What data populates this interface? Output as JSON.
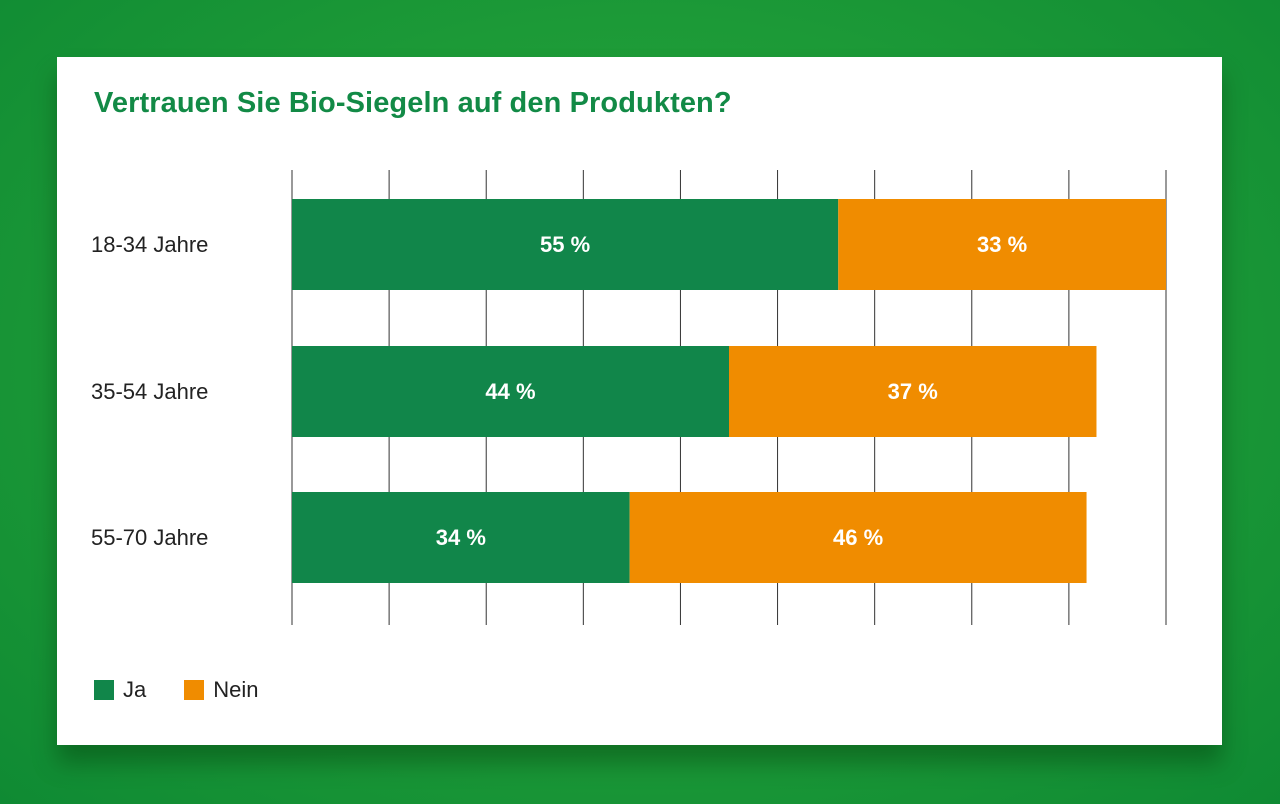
{
  "chart_data": {
    "type": "bar",
    "orientation": "horizontal",
    "stacked": true,
    "title": "Vertrauen Sie Bio-Siegeln auf den Produkten?",
    "categories": [
      "18-34 Jahre",
      "35-54 Jahre",
      "55-70 Jahre"
    ],
    "series": [
      {
        "name": "Ja",
        "values": [
          55,
          44,
          34
        ],
        "labels": [
          "55 %",
          "44 %",
          "34 %"
        ],
        "color": "#11864a"
      },
      {
        "name": "Nein",
        "values": [
          33,
          37,
          46
        ],
        "labels": [
          "33 %",
          "37 %",
          "46 %"
        ],
        "color": "#f08c00"
      }
    ],
    "xlim": [
      0,
      88
    ],
    "grid": true,
    "gridline_count": 10,
    "legend_position": "bottom-left",
    "unit": "%"
  },
  "colors": {
    "background": "#1f9d38",
    "card": "#ffffff",
    "title": "#128a46",
    "gridline": "#333333"
  }
}
